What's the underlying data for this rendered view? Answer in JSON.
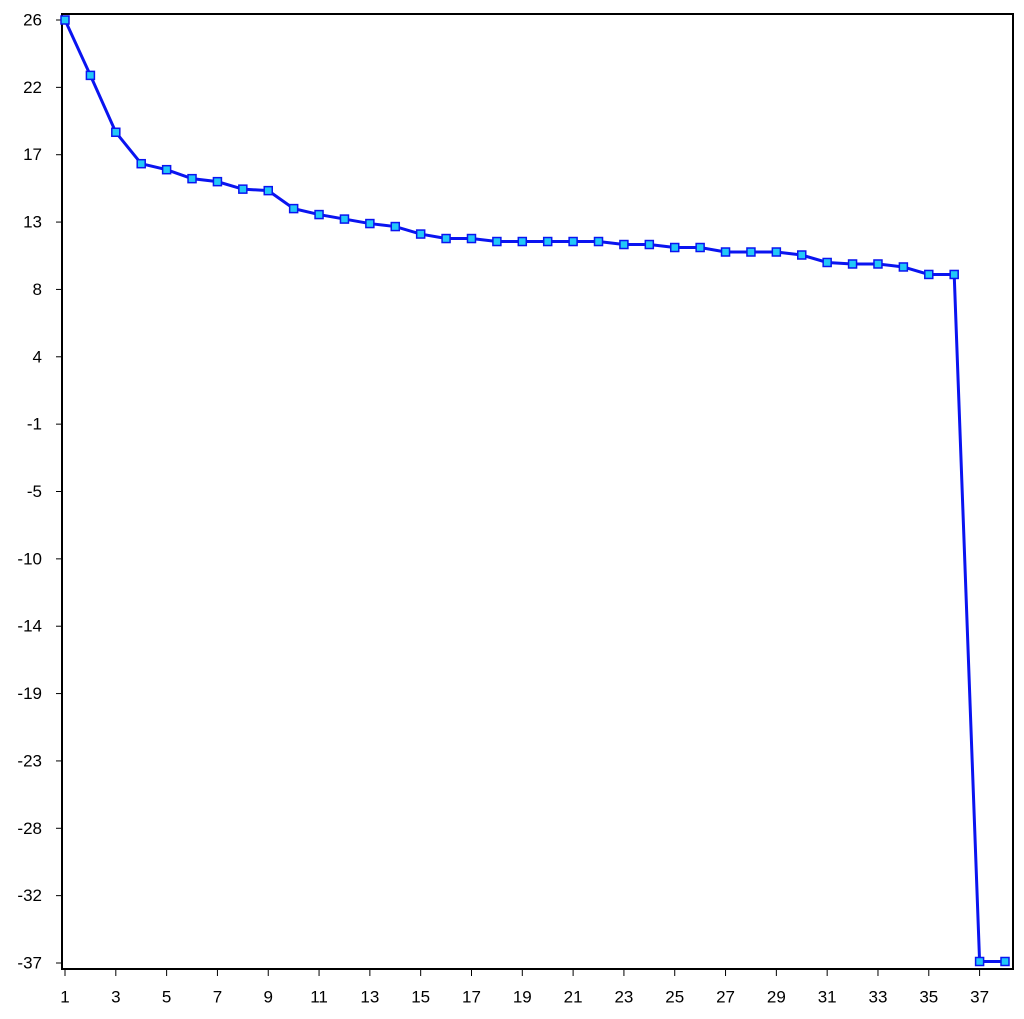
{
  "chart_data": {
    "type": "line",
    "x": [
      1,
      2,
      3,
      4,
      5,
      6,
      7,
      8,
      9,
      10,
      11,
      12,
      13,
      14,
      15,
      16,
      17,
      18,
      19,
      20,
      21,
      22,
      23,
      24,
      25,
      26,
      27,
      28,
      29,
      30,
      31,
      32,
      33,
      34,
      35,
      36,
      37,
      38
    ],
    "series": [
      {
        "color": "#0a14f0",
        "marker_color": "#22c8f8",
        "values": [
          26,
          22.3,
          18.5,
          16.4,
          16.0,
          15.4,
          15.2,
          14.7,
          14.6,
          13.4,
          13.0,
          12.7,
          12.4,
          12.2,
          11.7,
          11.4,
          11.4,
          11.2,
          11.2,
          11.2,
          11.2,
          11.2,
          11.0,
          11.0,
          10.8,
          10.8,
          10.5,
          10.5,
          10.5,
          10.3,
          9.8,
          9.7,
          9.7,
          9.5,
          9.0,
          9.0,
          -36.9,
          -36.9
        ]
      }
    ],
    "xlim": [
      1,
      38.3
    ],
    "xticks": [
      1,
      3,
      5,
      7,
      9,
      11,
      13,
      15,
      17,
      19,
      21,
      23,
      25,
      27,
      29,
      31,
      33,
      35,
      37
    ],
    "ylim": [
      -37,
      26
    ],
    "yticks": [
      26,
      {
        "value": 21.5,
        "label": "22"
      },
      17,
      {
        "value": 12.5,
        "label": "13"
      },
      8,
      {
        "value": 3.5,
        "label": "4"
      },
      -1,
      {
        "value": -5.5,
        "label": "-5"
      },
      -10,
      {
        "value": -14.5,
        "label": "-14"
      },
      -19,
      {
        "value": -23.5,
        "label": "-23"
      },
      -28,
      {
        "value": -32.5,
        "label": "-32"
      },
      -37
    ]
  }
}
